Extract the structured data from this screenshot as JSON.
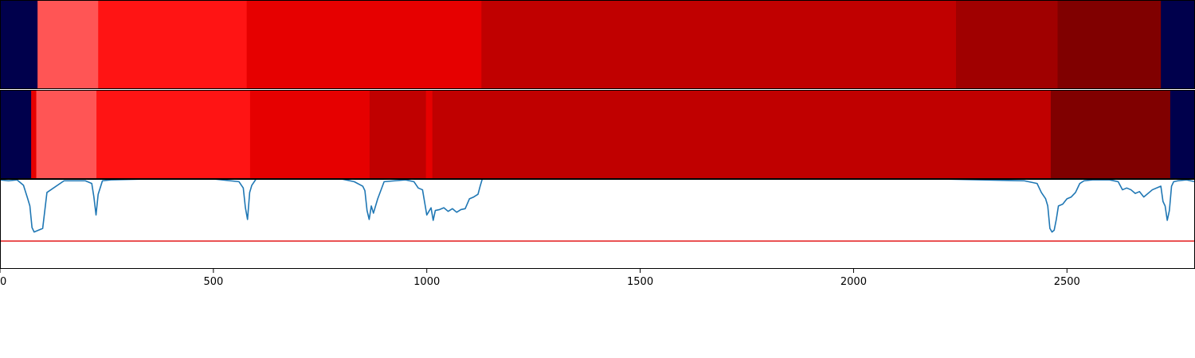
{
  "chart_data": [
    {
      "type": "heatmap",
      "name": "top-segment-strip",
      "x_range": [
        0,
        2800
      ],
      "segments": [
        {
          "start": 0,
          "end": 88,
          "color": "#00004c"
        },
        {
          "start": 88,
          "end": 230,
          "color": "#ff5555"
        },
        {
          "start": 230,
          "end": 578,
          "color": "#ff1414"
        },
        {
          "start": 578,
          "end": 1128,
          "color": "#e60000"
        },
        {
          "start": 1128,
          "end": 2240,
          "color": "#c00000"
        },
        {
          "start": 2240,
          "end": 2478,
          "color": "#a00000"
        },
        {
          "start": 2478,
          "end": 2720,
          "color": "#800000"
        },
        {
          "start": 2720,
          "end": 2800,
          "color": "#00004c"
        }
      ]
    },
    {
      "type": "heatmap",
      "name": "bottom-segment-strip",
      "x_range": [
        0,
        2800
      ],
      "segments": [
        {
          "start": 0,
          "end": 73,
          "color": "#00004c"
        },
        {
          "start": 73,
          "end": 85,
          "color": "#e60000"
        },
        {
          "start": 85,
          "end": 226,
          "color": "#ff5555"
        },
        {
          "start": 226,
          "end": 586,
          "color": "#ff1414"
        },
        {
          "start": 586,
          "end": 866,
          "color": "#e60000"
        },
        {
          "start": 866,
          "end": 998,
          "color": "#c00000"
        },
        {
          "start": 998,
          "end": 1013,
          "color": "#e60000"
        },
        {
          "start": 1013,
          "end": 2462,
          "color": "#c00000"
        },
        {
          "start": 2462,
          "end": 2742,
          "color": "#800000"
        },
        {
          "start": 2742,
          "end": 2800,
          "color": "#00004c"
        }
      ]
    },
    {
      "type": "line",
      "name": "signal-plot",
      "xlim": [
        0,
        2800
      ],
      "ylim": [
        0,
        1
      ],
      "xticks": [
        0,
        500,
        1000,
        1500,
        2000,
        2500
      ],
      "xtick_labels": [
        "0",
        "500",
        "1000",
        "1500",
        "2000",
        "2500"
      ],
      "threshold": 0.31,
      "threshold_color": "#e41a1c",
      "line_color": "#1f77b4",
      "series": [
        {
          "x": [
            0,
            20,
            40,
            55,
            65,
            70,
            75,
            80,
            90,
            100,
            110,
            150,
            200,
            215,
            220,
            225,
            230,
            240,
            260,
            350,
            500,
            560,
            570,
            575,
            580,
            585,
            590,
            600,
            650,
            800,
            830,
            850,
            855,
            860,
            865,
            870,
            875,
            885,
            900,
            950,
            970,
            980,
            990,
            1000,
            1010,
            1015,
            1020,
            1030,
            1040,
            1050,
            1060,
            1070,
            1080,
            1090,
            1100,
            1110,
            1120,
            1125,
            1130,
            1150,
            1500,
            2200,
            2400,
            2430,
            2440,
            2450,
            2455,
            2460,
            2465,
            2470,
            2475,
            2480,
            2490,
            2500,
            2510,
            2520,
            2530,
            2540,
            2560,
            2600,
            2620,
            2630,
            2640,
            2650,
            2660,
            2670,
            2680,
            2700,
            2720,
            2725,
            2730,
            2735,
            2740,
            2745,
            2750,
            2760,
            2780,
            2800
          ],
          "y": [
            0.99,
            0.98,
            0.99,
            0.93,
            0.78,
            0.7,
            0.46,
            0.41,
            0.43,
            0.45,
            0.85,
            0.98,
            0.98,
            0.95,
            0.8,
            0.6,
            0.83,
            0.98,
            0.99,
            1.0,
            1.0,
            0.97,
            0.9,
            0.68,
            0.55,
            0.85,
            0.93,
            1.0,
            1.0,
            1.0,
            0.97,
            0.92,
            0.87,
            0.65,
            0.55,
            0.7,
            0.62,
            0.78,
            0.97,
            0.99,
            0.97,
            0.9,
            0.88,
            0.6,
            0.68,
            0.54,
            0.65,
            0.66,
            0.68,
            0.64,
            0.67,
            0.63,
            0.66,
            0.67,
            0.78,
            0.8,
            0.83,
            0.92,
            1.0,
            1.0,
            1.0,
            1.0,
            0.98,
            0.95,
            0.85,
            0.78,
            0.7,
            0.45,
            0.41,
            0.43,
            0.55,
            0.7,
            0.72,
            0.78,
            0.8,
            0.85,
            0.95,
            0.98,
            0.99,
            0.99,
            0.97,
            0.88,
            0.9,
            0.88,
            0.84,
            0.86,
            0.8,
            0.88,
            0.92,
            0.75,
            0.7,
            0.54,
            0.65,
            0.92,
            0.97,
            0.98,
            0.99,
            0.97
          ]
        }
      ]
    }
  ]
}
